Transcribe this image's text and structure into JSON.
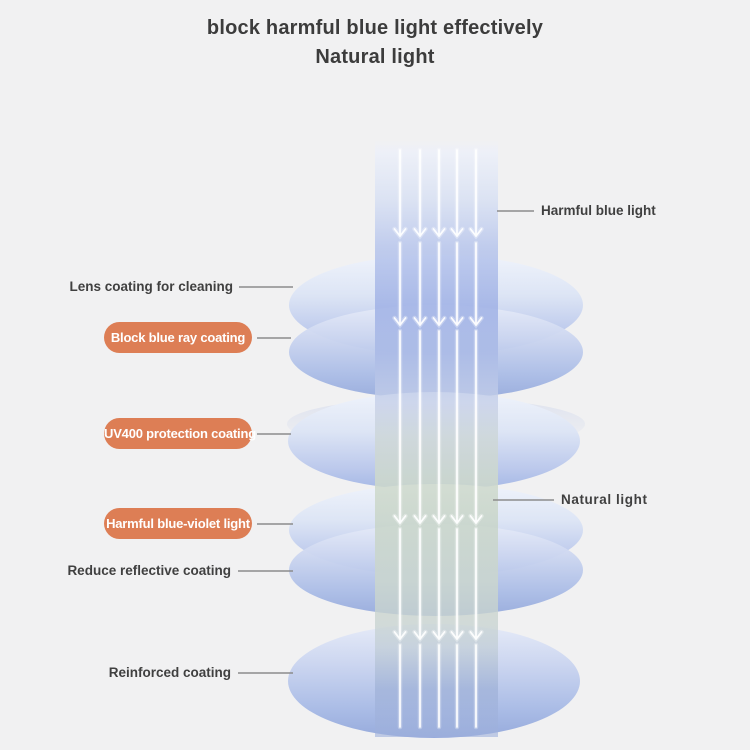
{
  "title": {
    "line1": "block harmful blue light effectively",
    "line2": "Natural light"
  },
  "left_labels": {
    "lens_cleaning": "Lens coating for cleaning",
    "block_blue_ray": "Block blue ray coating",
    "uv400": "UV400 protection coating",
    "blue_violet": "Harmful blue-violet light",
    "reduce_reflective": "Reduce reflective coating",
    "reinforced": "Reinforced coating"
  },
  "right_labels": {
    "harmful_blue": "Harmful blue light",
    "natural": "Natural light"
  },
  "colors": {
    "pill_orange": "#dd7e55",
    "title_text": "#3c3c3c",
    "label_text": "#404040",
    "connector_gray": "#8c8c8c",
    "lens_blue": "#a5b8e5",
    "beam_green": "#cfdccd",
    "background": "#f1f1f2"
  }
}
